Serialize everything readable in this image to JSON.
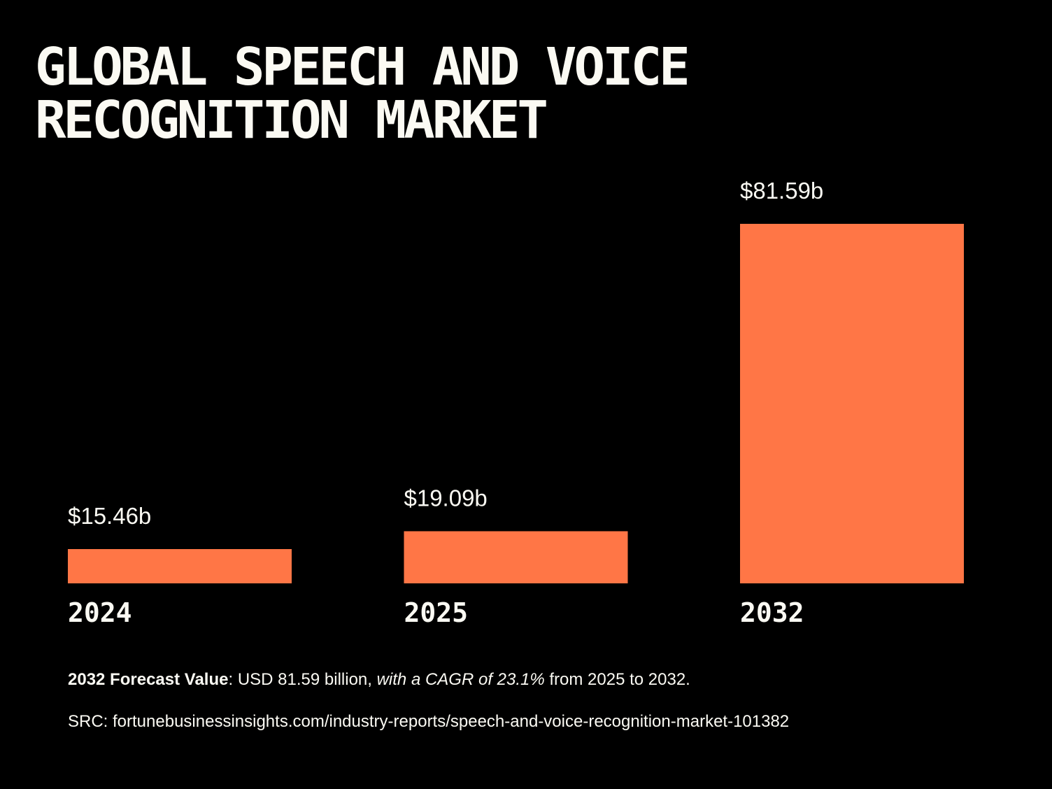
{
  "chart_data": {
    "type": "bar",
    "title": "GLOBAL SPEECH AND VOICE RECOGNITION MARKET",
    "title_lines": [
      "GLOBAL SPEECH AND VOICE",
      "RECOGNITION MARKET"
    ],
    "categories": [
      "2024",
      "2025",
      "2032"
    ],
    "values": [
      15.46,
      19.09,
      81.59
    ],
    "data_labels": [
      "$15.46b",
      "$19.09b",
      "$81.59b"
    ],
    "unit": "USD billion",
    "xlabel": "",
    "ylabel": "",
    "grid": false,
    "bar_color": "#ff7646"
  },
  "footnote": {
    "bold": "2032 Forecast Value",
    "plain1": ": USD 81.59 billion, ",
    "italic": "with a CAGR of 23.1%",
    "plain2": " from 2025 to 2032."
  },
  "source": "SRC: fortunebusinessinsights.com/industry-reports/speech-and-voice-recognition-market-101382"
}
